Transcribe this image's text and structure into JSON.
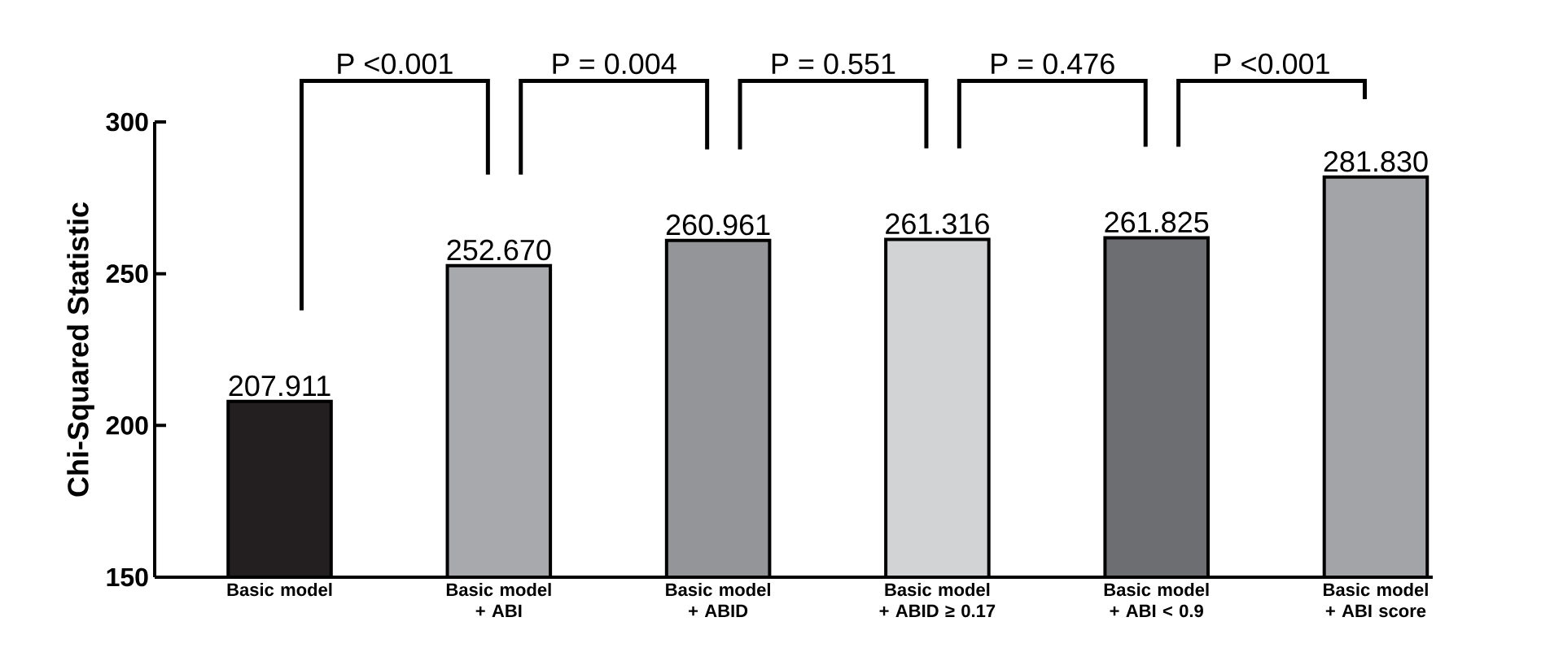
{
  "chart_data": {
    "type": "bar",
    "ylabel": "Chi-Squared Statistic",
    "categories": [
      "Basic model",
      "Basic model + ABI",
      "Basic model + ABID",
      "Basic model + ABID ≥ 0.17",
      "Basic model + ABI < 0.9",
      "Basic model + ABI score"
    ],
    "values": [
      207.911,
      252.67,
      260.961,
      261.316,
      261.825,
      281.83
    ],
    "value_labels": [
      "207.911",
      "252.670",
      "260.961",
      "261.316",
      "261.825",
      "281.830"
    ],
    "colors": [
      "#231f20",
      "#a7a9ac",
      "#939598",
      "#d1d3d4",
      "#6d6e71",
      "#a2a4a7"
    ],
    "ylim": [
      150,
      300
    ],
    "yticks": [
      150,
      200,
      250,
      300
    ],
    "annotations": [
      "P <0.001",
      "P = 0.004",
      "P = 0.551",
      "P = 0.476",
      "P <0.001"
    ]
  }
}
